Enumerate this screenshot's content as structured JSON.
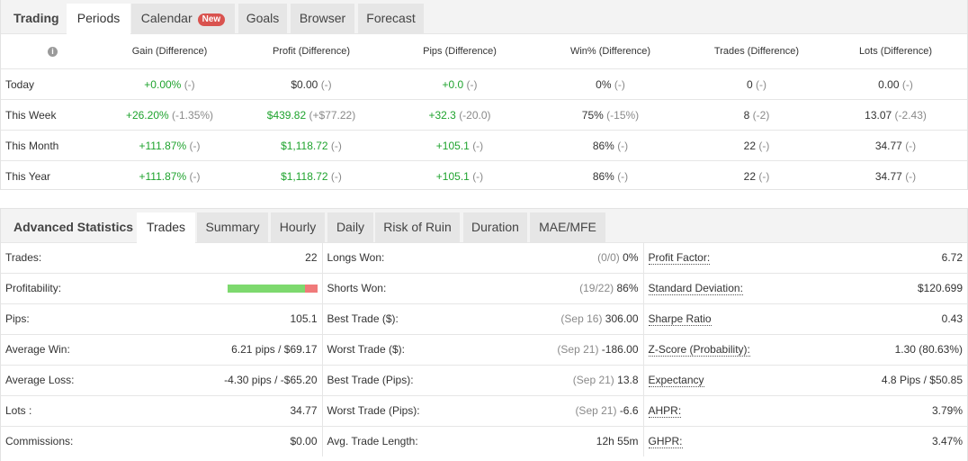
{
  "periods": {
    "tabs": [
      {
        "label": "Trading"
      },
      {
        "label": "Periods"
      },
      {
        "label": "Calendar",
        "badge": "New"
      },
      {
        "label": "Goals"
      },
      {
        "label": "Browser"
      },
      {
        "label": "Forecast"
      }
    ],
    "columns": [
      "Gain (Difference)",
      "Profit (Difference)",
      "Pips (Difference)",
      "Win% (Difference)",
      "Trades (Difference)",
      "Lots (Difference)"
    ],
    "rows": [
      {
        "label": "Today",
        "gain": "+0.00%",
        "gain_diff": "(-)",
        "profit": "$0.00",
        "profit_diff": "(-)",
        "pips": "+0.0",
        "pips_diff": "(-)",
        "win": "0%",
        "win_diff": "(-)",
        "trades": "0",
        "trades_diff": "(-)",
        "lots": "0.00",
        "lots_diff": "(-)"
      },
      {
        "label": "This Week",
        "gain": "+26.20%",
        "gain_diff": "(-1.35%)",
        "profit": "$439.82",
        "profit_diff": "(+$77.22)",
        "pips": "+32.3",
        "pips_diff": "(-20.0)",
        "win": "75%",
        "win_diff": "(-15%)",
        "trades": "8",
        "trades_diff": "(-2)",
        "lots": "13.07",
        "lots_diff": "(-2.43)"
      },
      {
        "label": "This Month",
        "gain": "+111.87%",
        "gain_diff": "(-)",
        "profit": "$1,118.72",
        "profit_diff": "(-)",
        "pips": "+105.1",
        "pips_diff": "(-)",
        "win": "86%",
        "win_diff": "(-)",
        "trades": "22",
        "trades_diff": "(-)",
        "lots": "34.77",
        "lots_diff": "(-)"
      },
      {
        "label": "This Year",
        "gain": "+111.87%",
        "gain_diff": "(-)",
        "profit": "$1,118.72",
        "profit_diff": "(-)",
        "pips": "+105.1",
        "pips_diff": "(-)",
        "win": "86%",
        "win_diff": "(-)",
        "trades": "22",
        "trades_diff": "(-)",
        "lots": "34.77",
        "lots_diff": "(-)"
      }
    ]
  },
  "advanced": {
    "tabs": [
      {
        "label": "Advanced Statistics"
      },
      {
        "label": "Trades"
      },
      {
        "label": "Summary"
      },
      {
        "label": "Hourly"
      },
      {
        "label": "Daily"
      },
      {
        "label": "Risk of Ruin"
      },
      {
        "label": "Duration"
      },
      {
        "label": "MAE/MFE"
      }
    ],
    "col1": [
      {
        "label": "Trades:",
        "value": "22"
      },
      {
        "label": "Profitability:",
        "bar": 0.86
      },
      {
        "label": "Pips:",
        "value": "105.1"
      },
      {
        "label": "Average Win:",
        "value": "6.21 pips / $69.17"
      },
      {
        "label": "Average Loss:",
        "value": "-4.30 pips / -$65.20"
      },
      {
        "label": "Lots :",
        "value": "34.77"
      },
      {
        "label": "Commissions:",
        "value": "$0.00"
      }
    ],
    "col2": [
      {
        "label": "Longs Won:",
        "note": "(0/0)",
        "value": "0%"
      },
      {
        "label": "Shorts Won:",
        "note": "(19/22)",
        "value": "86%"
      },
      {
        "label": "Best Trade ($):",
        "note": "(Sep 16)",
        "value": "306.00"
      },
      {
        "label": "Worst Trade ($):",
        "note": "(Sep 21)",
        "value": "-186.00"
      },
      {
        "label": "Best Trade (Pips):",
        "note": "(Sep 21)",
        "value": "13.8"
      },
      {
        "label": "Worst Trade (Pips):",
        "note": "(Sep 21)",
        "value": "-6.6"
      },
      {
        "label": "Avg. Trade Length:",
        "note": "",
        "value": "12h 55m"
      }
    ],
    "col3": [
      {
        "label": "Profit Factor:",
        "value": "6.72"
      },
      {
        "label": "Standard Deviation:",
        "value": "$120.699"
      },
      {
        "label": "Sharpe Ratio",
        "value": "0.43"
      },
      {
        "label": "Z-Score (Probability):",
        "value": "1.30 (80.63%)"
      },
      {
        "label": "Expectancy",
        "value": "4.8 Pips / $50.85"
      },
      {
        "label": "AHPR:",
        "value": "3.79%"
      },
      {
        "label": "GHPR:",
        "value": "3.47%"
      }
    ]
  },
  "colors": {
    "positive": "#1fa32e",
    "diff": "#8a8a8a",
    "bar_good": "#7dd96e",
    "bar_bad": "#f07a7a"
  },
  "icons": {
    "info": "info-icon"
  }
}
